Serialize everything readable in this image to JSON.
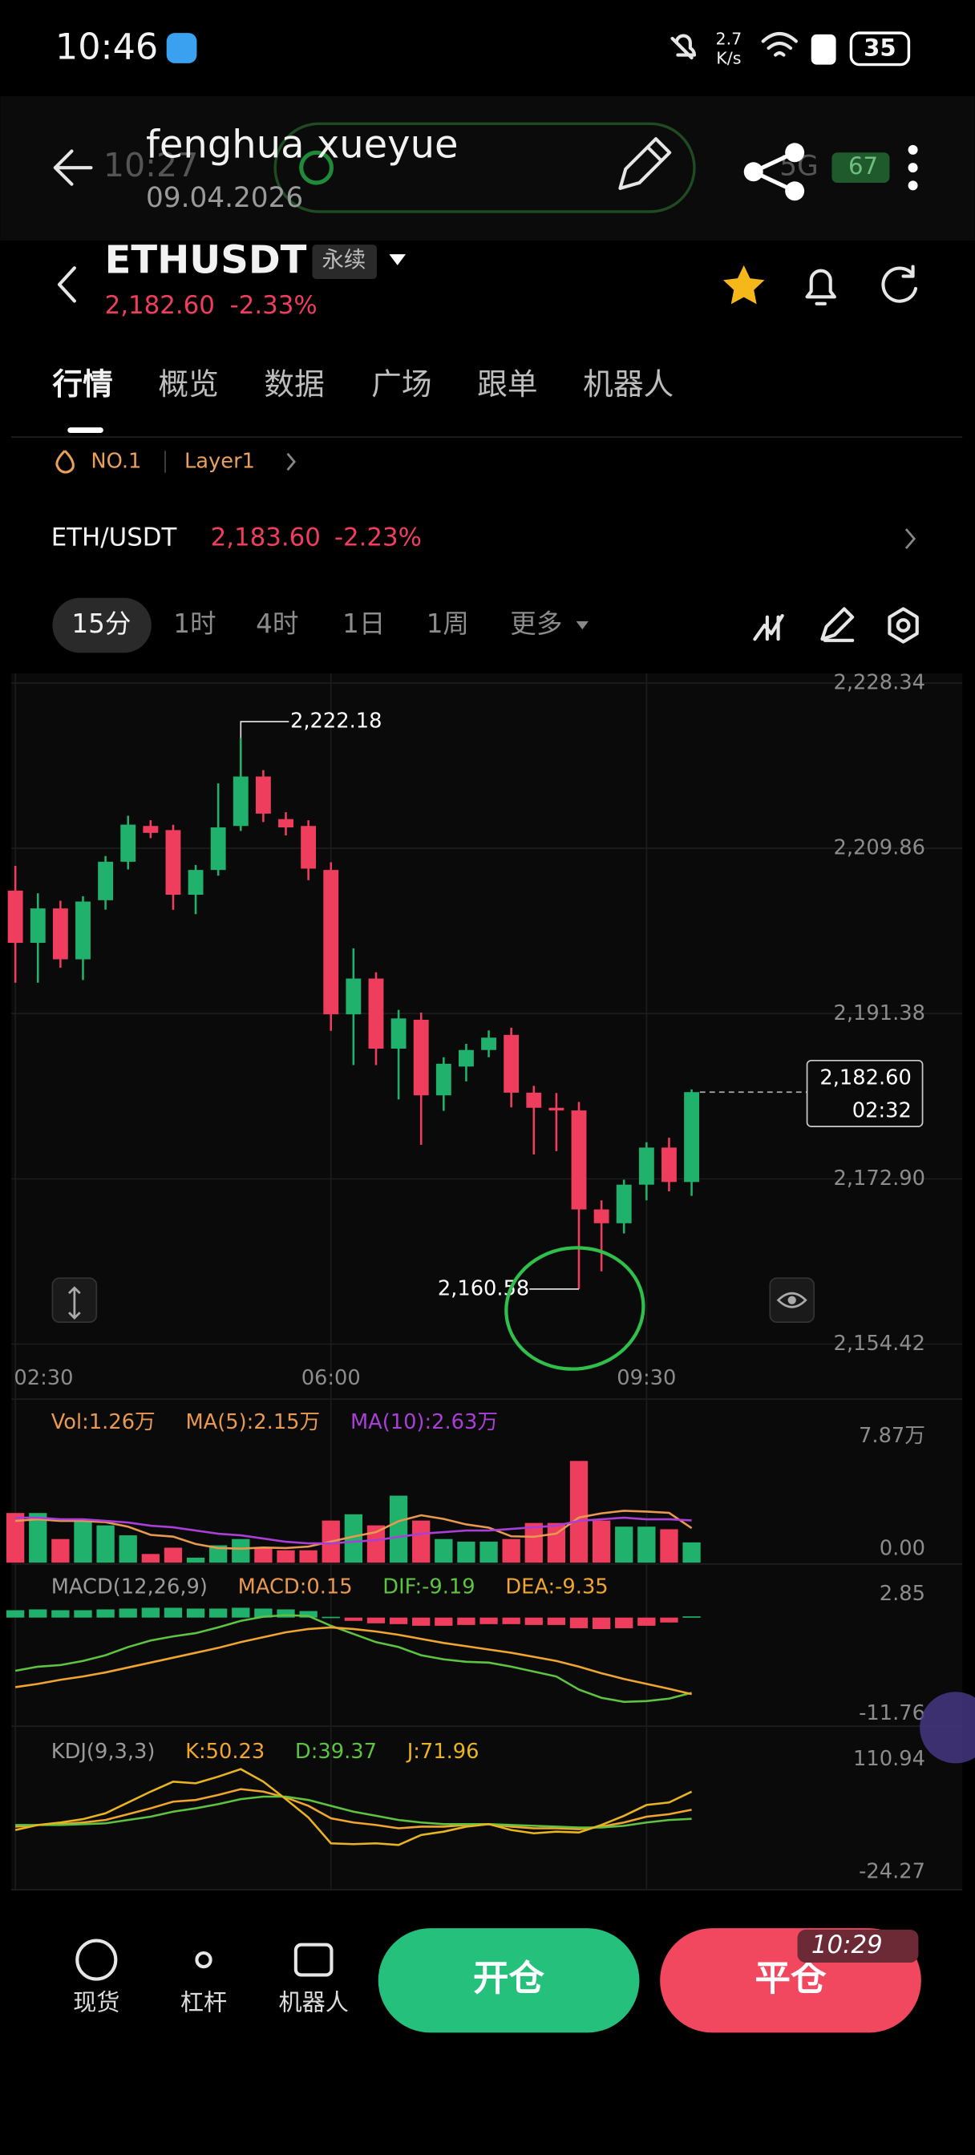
{
  "status_bar": {
    "time": "10:46",
    "speed": "2.7",
    "speed_unit": "K/s",
    "battery": "35"
  },
  "overlay": {
    "name": "fenghua xueyue",
    "date": "09.04.2026",
    "time": "10:27",
    "network": "5G",
    "battery": "67",
    "corner_time": "10:29"
  },
  "header": {
    "symbol": "ETHUSDT",
    "contract": "永续",
    "price": "2,182.60",
    "change": "-2.33%"
  },
  "tabs": [
    "行情",
    "概览",
    "数据",
    "广场",
    "跟单",
    "机器人"
  ],
  "tags": [
    "NO.1",
    "Layer1"
  ],
  "pair": {
    "name": "ETH/USDT",
    "price": "2,183.60",
    "change": "-2.23%"
  },
  "intervals": [
    "15分",
    "1时",
    "4时",
    "1日",
    "1周",
    "更多"
  ],
  "chart_data": [
    {
      "type": "candlestick",
      "categories": [
        "02:30",
        null,
        null,
        null,
        null,
        null,
        null,
        null,
        null,
        null,
        null,
        null,
        null,
        null,
        "06:00",
        null,
        null,
        null,
        null,
        null,
        null,
        null,
        null,
        null,
        null,
        null,
        null,
        null,
        "09:30",
        null,
        null
      ],
      "open": [
        2205.13,
        2199.29,
        2203.14,
        2197.45,
        2204.06,
        2208.36,
        2212.36,
        2211.9,
        2204.67,
        2207.44,
        2212.36,
        2217.89,
        2213.13,
        2212.36,
        2207.44,
        2191.3,
        2195.3,
        2187.46,
        2190.69,
        2182.24,
        2185.46,
        2187.31,
        2189.0,
        2182.54,
        2180.85,
        2180.55,
        2169.48,
        2167.94,
        2172.25,
        2176.4,
        2172.55
      ],
      "high": [
        2207.9,
        2204.83,
        2204.0,
        2204.5,
        2209.0,
        2213.5,
        2213.0,
        2212.5,
        2208.0,
        2217.12,
        2222.18,
        2218.6,
        2213.9,
        2213.0,
        2208.3,
        2198.68,
        2196.0,
        2191.8,
        2191.5,
        2186.5,
        2188.0,
        2189.5,
        2189.8,
        2183.3,
        2182.5,
        2181.5,
        2170.5,
        2172.8,
        2177.0,
        2177.5,
        2182.9
      ],
      "low": [
        2194.84,
        2194.84,
        2196.5,
        2195.14,
        2203.0,
        2207.5,
        2211.0,
        2202.98,
        2202.5,
        2206.8,
        2211.8,
        2212.8,
        2211.3,
        2206.3,
        2189.46,
        2185.62,
        2185.62,
        2181.78,
        2176.7,
        2180.5,
        2183.8,
        2186.5,
        2180.9,
        2175.63,
        2176.0,
        2160.58,
        2162.56,
        2166.8,
        2170.5,
        2171.5,
        2171.0
      ],
      "close": [
        2199.29,
        2203.14,
        2197.45,
        2203.91,
        2208.36,
        2212.51,
        2211.59,
        2204.67,
        2207.44,
        2212.2,
        2217.89,
        2213.74,
        2212.2,
        2207.59,
        2191.3,
        2195.3,
        2187.46,
        2190.84,
        2182.24,
        2185.77,
        2187.31,
        2188.69,
        2182.54,
        2180.85,
        2180.55,
        2169.48,
        2167.94,
        2172.25,
        2176.4,
        2172.55,
        2182.6
      ],
      "up_color": "#20b26c",
      "down_color": "#ef3d5e",
      "ylim": [
        2154.42,
        2228.34
      ],
      "yticks": [
        {
          "value": 2154.42,
          "label": "2,154.42"
        },
        {
          "value": 2172.9,
          "label": "2,172.90"
        },
        {
          "value": 2191.38,
          "label": "2,191.38"
        },
        {
          "value": 2209.86,
          "label": "2,209.86"
        },
        {
          "value": 2228.34,
          "label": "2,228.34"
        }
      ],
      "grid": true,
      "high_label": "2,222.18",
      "low_label": "2,160.58",
      "last_price_label": "2,182.60",
      "countdown": "02:32"
    },
    {
      "type": "bar",
      "series": [
        {
          "name": "Vol:1.26万",
          "color": "#e8994f",
          "values": [
            3.09,
            3.09,
            1.47,
            2.62,
            2.32,
            1.7,
            0.54,
            0.93,
            0.31,
            1.08,
            1.47,
            0.93,
            0.77,
            0.77,
            2.62,
            3.01,
            2.32,
            4.17,
            2.62,
            1.47,
            1.31,
            1.31,
            1.47,
            2.47,
            2.47,
            6.33,
            2.62,
            2.24,
            2.24,
            2.08,
            1.26
          ]
        },
        {
          "name": "MA(5):2.15万",
          "color": "#e8994f",
          "type": "line",
          "values": [
            2.6,
            2.7,
            2.6,
            2.6,
            2.52,
            2.24,
            1.73,
            1.62,
            1.16,
            0.91,
            0.87,
            0.94,
            0.91,
            1.0,
            1.31,
            1.62,
            1.9,
            2.58,
            2.95,
            2.72,
            2.38,
            2.18,
            1.64,
            1.61,
            1.81,
            2.81,
            3.07,
            3.23,
            3.18,
            3.1,
            2.15
          ]
        },
        {
          "name": "MA(10):2.63万",
          "color": "#a93fd6",
          "type": "line",
          "values": [
            2.8,
            2.8,
            2.7,
            2.7,
            2.6,
            2.5,
            2.3,
            2.2,
            2.0,
            1.8,
            1.7,
            1.5,
            1.3,
            1.2,
            1.2,
            1.3,
            1.4,
            1.6,
            1.8,
            1.9,
            2.0,
            2.0,
            2.1,
            2.2,
            2.3,
            2.6,
            2.7,
            2.8,
            2.7,
            2.7,
            2.63
          ]
        }
      ],
      "up_color": "#20b26c",
      "down_color": "#ef3d5e",
      "ylim": [
        0,
        7.87
      ],
      "yticks": [
        {
          "value": 0,
          "label": "0.00"
        },
        {
          "value": 7.87,
          "label": "7.87万"
        }
      ]
    },
    {
      "type": "macd",
      "title": "MACD(12,26,9)",
      "series": [
        {
          "name": "MACD:0.15",
          "color": "#e8994f",
          "values": [
            0.9,
            1.0,
            0.9,
            0.9,
            1.0,
            1.1,
            1.2,
            1.2,
            1.1,
            1.1,
            1.2,
            1.1,
            1.0,
            0.8,
            0.1,
            -0.4,
            -0.7,
            -0.8,
            -1.0,
            -1.0,
            -0.9,
            -0.8,
            -0.8,
            -0.9,
            -0.9,
            -1.3,
            -1.4,
            -1.3,
            -1.0,
            -0.6,
            0.15
          ]
        },
        {
          "name": "DIF:-9.19",
          "color": "#5dc341",
          "type": "line",
          "values": [
            -6.5,
            -6.0,
            -5.8,
            -5.3,
            -4.6,
            -3.6,
            -2.8,
            -2.3,
            -1.9,
            -1.2,
            -0.4,
            0.1,
            0.3,
            0.2,
            -1.0,
            -2.0,
            -3.0,
            -3.6,
            -4.6,
            -5.1,
            -5.4,
            -5.5,
            -6.0,
            -6.6,
            -7.2,
            -8.8,
            -9.8,
            -10.3,
            -10.2,
            -9.9,
            -9.19
          ]
        },
        {
          "name": "DEA:-9.35",
          "color": "#f0a52f",
          "type": "line",
          "values": [
            -8.5,
            -8.1,
            -7.6,
            -7.2,
            -6.7,
            -6.1,
            -5.5,
            -4.9,
            -4.3,
            -3.7,
            -3.0,
            -2.4,
            -1.8,
            -1.4,
            -1.2,
            -1.4,
            -1.7,
            -2.1,
            -2.6,
            -3.1,
            -3.5,
            -3.9,
            -4.3,
            -4.8,
            -5.3,
            -6.0,
            -6.8,
            -7.5,
            -8.1,
            -8.7,
            -9.35
          ]
        }
      ],
      "up_color": "#20b26c",
      "down_color": "#ef3d5e",
      "ylim": [
        -11.76,
        2.85
      ],
      "yticks": [
        -11.76,
        2.85
      ]
    },
    {
      "type": "kdj",
      "title": "KDJ(9,3,3)",
      "series": [
        {
          "name": "K:50.23",
          "color": "#f0a52f",
          "type": "line",
          "values": [
            30,
            32,
            33,
            35,
            38,
            45,
            52,
            60,
            62,
            68,
            75,
            72,
            65,
            55,
            40,
            35,
            32,
            28,
            30,
            30,
            32,
            33,
            30,
            28,
            28,
            27,
            30,
            35,
            42,
            45,
            50.23
          ]
        },
        {
          "name": "D:39.37",
          "color": "#5dc341",
          "type": "line",
          "values": [
            32,
            32,
            32,
            33,
            34,
            38,
            42,
            48,
            52,
            57,
            63,
            66,
            66,
            62,
            55,
            48,
            43,
            38,
            35,
            33,
            33,
            33,
            32,
            31,
            30,
            29,
            29,
            31,
            35,
            38,
            39.37
          ]
        },
        {
          "name": "J:71.96",
          "color": "#e8b520",
          "type": "line",
          "values": [
            26,
            32,
            35,
            39,
            46,
            59,
            72,
            84,
            82,
            90,
            99,
            84,
            63,
            41,
            10,
            9,
            10,
            8,
            20,
            24,
            30,
            33,
            26,
            22,
            24,
            23,
            32,
            43,
            56,
            59,
            71.96
          ]
        }
      ],
      "ylim": [
        -24.27,
        110.94
      ],
      "yticks": [
        -24.27,
        110.94
      ]
    }
  ],
  "bottom_bar": {
    "items": [
      "现货",
      "杠杆",
      "机器人"
    ],
    "open": "开仓",
    "close": "平仓"
  }
}
